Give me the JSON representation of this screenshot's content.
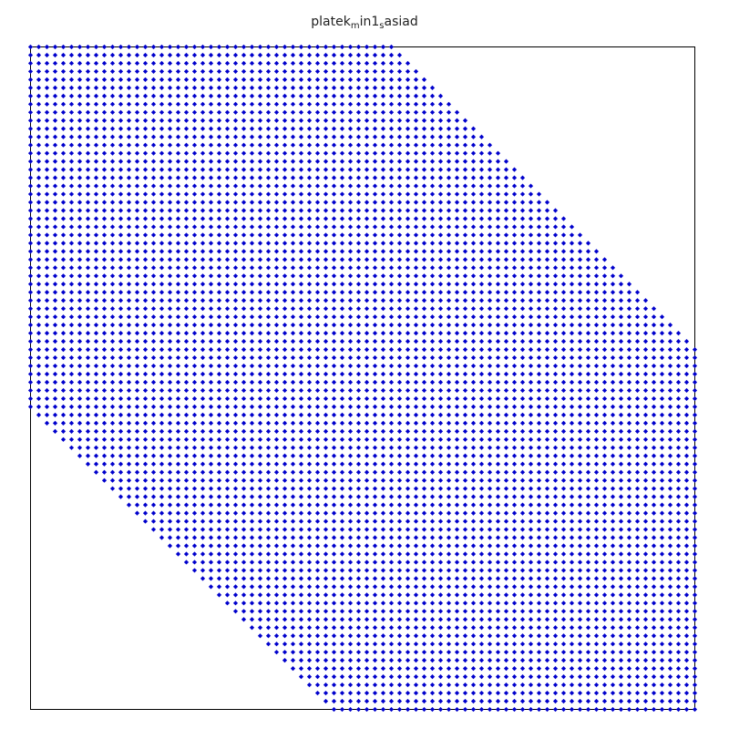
{
  "chart_data": {
    "type": "scatter",
    "title": {
      "base": "platek",
      "sub1": "m",
      "mid": "in1",
      "sub2": "s",
      "tail": "asiad"
    },
    "matrix_size": 82,
    "pattern": "banded-sparsity",
    "band": {
      "upper_offset": 44,
      "lower_offset": 44
    },
    "marker": "diamond",
    "marker_color": "#0000cc",
    "frame_color": "#000000",
    "grid": false,
    "legend": "none",
    "xlim": [
      1,
      82
    ],
    "ylim": [
      1,
      82
    ]
  }
}
